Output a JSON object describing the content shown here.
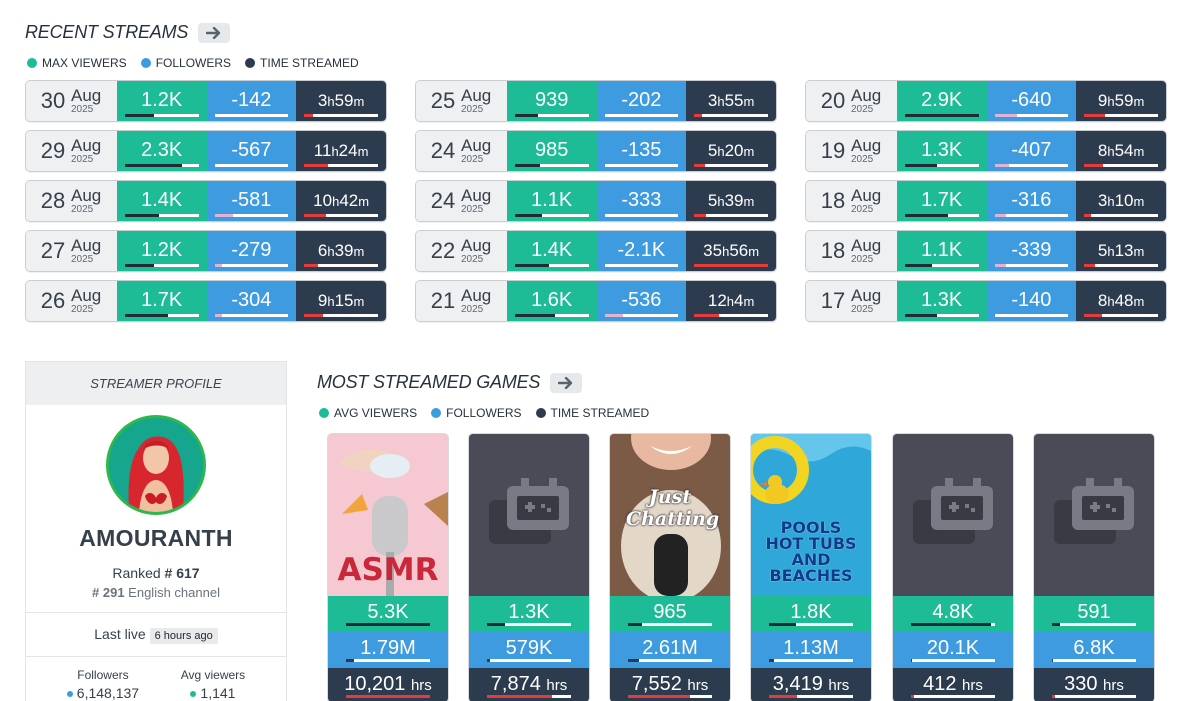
{
  "recent_streams": {
    "title": "RECENT STREAMS",
    "legend": [
      {
        "label": "MAX VIEWERS",
        "color": "#1dbb96"
      },
      {
        "label": "FOLLOWERS",
        "color": "#3e9be0"
      },
      {
        "label": "TIME STREAMED",
        "color": "#2d3b4e"
      }
    ],
    "columns": [
      [
        {
          "day": "30",
          "month": "Aug",
          "year": "2025",
          "viewers": "1.2K",
          "followers": "-142",
          "time_h": "3",
          "time_m": "59",
          "viewers_pct": 40,
          "followers_pct": 0,
          "time_pct": 12
        },
        {
          "day": "29",
          "month": "Aug",
          "year": "2025",
          "viewers": "2.3K",
          "followers": "-567",
          "time_h": "11",
          "time_m": "24",
          "viewers_pct": 78,
          "followers_pct": 0,
          "time_pct": 32
        },
        {
          "day": "28",
          "month": "Aug",
          "year": "2025",
          "viewers": "1.4K",
          "followers": "-581",
          "time_h": "10",
          "time_m": "42",
          "viewers_pct": 47,
          "followers_pct": 25,
          "time_pct": 30
        },
        {
          "day": "27",
          "month": "Aug",
          "year": "2025",
          "viewers": "1.2K",
          "followers": "-279",
          "time_h": "6",
          "time_m": "39",
          "viewers_pct": 40,
          "followers_pct": 10,
          "time_pct": 18
        },
        {
          "day": "26",
          "month": "Aug",
          "year": "2025",
          "viewers": "1.7K",
          "followers": "-304",
          "time_h": "9",
          "time_m": "15",
          "viewers_pct": 58,
          "followers_pct": 10,
          "time_pct": 26
        }
      ],
      [
        {
          "day": "25",
          "month": "Aug",
          "year": "2025",
          "viewers": "939",
          "followers": "-202",
          "time_h": "3",
          "time_m": "55",
          "viewers_pct": 32,
          "followers_pct": 0,
          "time_pct": 11
        },
        {
          "day": "24",
          "month": "Aug",
          "year": "2025",
          "viewers": "985",
          "followers": "-135",
          "time_h": "5",
          "time_m": "20",
          "viewers_pct": 34,
          "followers_pct": 0,
          "time_pct": 15
        },
        {
          "day": "24",
          "month": "Aug",
          "year": "2025",
          "viewers": "1.1K",
          "followers": "-333",
          "time_h": "5",
          "time_m": "39",
          "viewers_pct": 37,
          "followers_pct": 0,
          "time_pct": 16
        },
        {
          "day": "22",
          "month": "Aug",
          "year": "2025",
          "viewers": "1.4K",
          "followers": "-2.1K",
          "time_h": "35",
          "time_m": "56",
          "viewers_pct": 47,
          "followers_pct": 0,
          "time_pct": 100
        },
        {
          "day": "21",
          "month": "Aug",
          "year": "2025",
          "viewers": "1.6K",
          "followers": "-536",
          "time_h": "12",
          "time_m": "4",
          "viewers_pct": 55,
          "followers_pct": 25,
          "time_pct": 34
        }
      ],
      [
        {
          "day": "20",
          "month": "Aug",
          "year": "2025",
          "viewers": "2.9K",
          "followers": "-640",
          "time_h": "9",
          "time_m": "59",
          "viewers_pct": 100,
          "followers_pct": 30,
          "time_pct": 28
        },
        {
          "day": "19",
          "month": "Aug",
          "year": "2025",
          "viewers": "1.3K",
          "followers": "-407",
          "time_h": "8",
          "time_m": "54",
          "viewers_pct": 44,
          "followers_pct": 20,
          "time_pct": 25
        },
        {
          "day": "18",
          "month": "Aug",
          "year": "2025",
          "viewers": "1.7K",
          "followers": "-316",
          "time_h": "3",
          "time_m": "10",
          "viewers_pct": 58,
          "followers_pct": 15,
          "time_pct": 9
        },
        {
          "day": "18",
          "month": "Aug",
          "year": "2025",
          "viewers": "1.1K",
          "followers": "-339",
          "time_h": "5",
          "time_m": "13",
          "viewers_pct": 37,
          "followers_pct": 15,
          "time_pct": 14
        },
        {
          "day": "17",
          "month": "Aug",
          "year": "2025",
          "viewers": "1.3K",
          "followers": "-140",
          "time_h": "8",
          "time_m": "48",
          "viewers_pct": 44,
          "followers_pct": 0,
          "time_pct": 24
        }
      ]
    ]
  },
  "profile": {
    "header": "STREAMER PROFILE",
    "name": "AMOURANTH",
    "ranked_prefix": "Ranked ",
    "rank": "# 617",
    "lang_rank": "# 291",
    "lang_label": " English channel",
    "last_live_label": "Last live",
    "last_live_value": "6 hours ago",
    "followers_label": "Followers",
    "followers_value": "6,148,137",
    "avg_viewers_label": "Avg viewers",
    "avg_viewers_value": "1,141"
  },
  "games": {
    "title": "MOST STREAMED GAMES",
    "legend": [
      {
        "label": "AVG VIEWERS",
        "color": "#1dbb96"
      },
      {
        "label": "FOLLOWERS",
        "color": "#3e9be0"
      },
      {
        "label": "TIME STREAMED",
        "color": "#2d3b4e"
      }
    ],
    "items": [
      {
        "cover": "asmr",
        "cover_text": "ASMR",
        "avg": "5.3K",
        "followers": "1.79M",
        "hours": "10,201",
        "avg_pct": 100,
        "followers_pct": 9,
        "hours_pct": 100
      },
      {
        "cover": "placeholder",
        "cover_text": "",
        "avg": "1.3K",
        "followers": "579K",
        "hours": "7,874",
        "avg_pct": 22,
        "followers_pct": 3,
        "hours_pct": 77
      },
      {
        "cover": "chatting",
        "cover_text": "Just Chatting",
        "avg": "965",
        "followers": "2.61M",
        "hours": "7,552",
        "avg_pct": 17,
        "followers_pct": 13,
        "hours_pct": 74
      },
      {
        "cover": "pools",
        "cover_text": "POOLS HOT TUBS AND BEACHES",
        "avg": "1.8K",
        "followers": "1.13M",
        "hours": "3,419",
        "avg_pct": 32,
        "followers_pct": 6,
        "hours_pct": 33
      },
      {
        "cover": "placeholder",
        "cover_text": "",
        "avg": "4.8K",
        "followers": "20.1K",
        "hours": "412",
        "avg_pct": 95,
        "followers_pct": 1,
        "hours_pct": 4
      },
      {
        "cover": "placeholder",
        "cover_text": "",
        "avg": "591",
        "followers": "6.8K",
        "hours": "330",
        "avg_pct": 10,
        "followers_pct": 1,
        "hours_pct": 3
      }
    ],
    "hours_unit": "hrs"
  },
  "units": {
    "h": "h",
    "m": "m"
  }
}
